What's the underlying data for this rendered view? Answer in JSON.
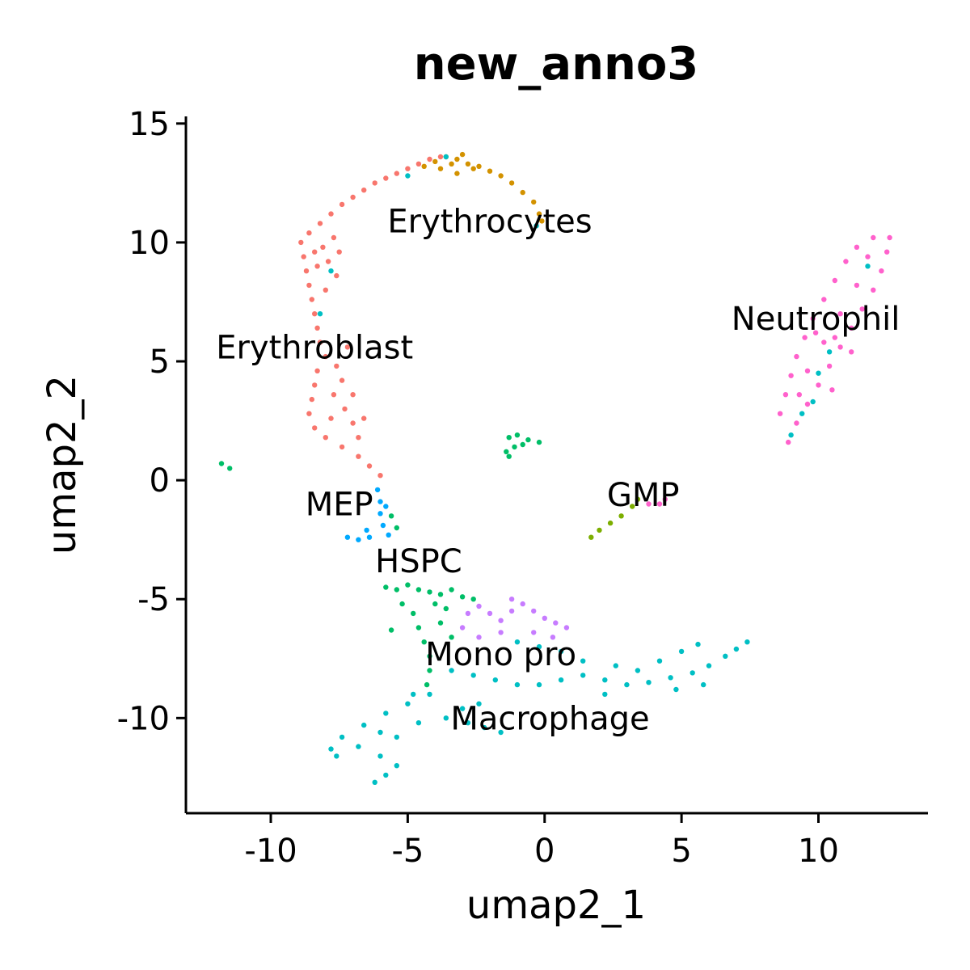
{
  "chart_data": {
    "type": "scatter",
    "title": "new_anno3",
    "xlabel": "umap2_1",
    "ylabel": "umap2_2",
    "xlim": [
      -13.1,
      14.0
    ],
    "ylim": [
      -14.0,
      15.3
    ],
    "xticks": [
      {
        "value": -10,
        "label": "-10"
      },
      {
        "value": -5,
        "label": "-5"
      },
      {
        "value": 0,
        "label": "0"
      },
      {
        "value": 5,
        "label": "5"
      },
      {
        "value": 10,
        "label": "10"
      }
    ],
    "yticks": [
      {
        "value": 15,
        "label": "15"
      },
      {
        "value": 10,
        "label": "10"
      },
      {
        "value": 5,
        "label": "5"
      },
      {
        "value": 0,
        "label": "0"
      },
      {
        "value": -5,
        "label": "-5"
      },
      {
        "value": -10,
        "label": "-10"
      }
    ],
    "grid": false,
    "legend": "none",
    "labels": [
      {
        "text": "Erythrocytes",
        "x": -2.0,
        "y": 10.9
      },
      {
        "text": "Neutrophil",
        "x": 9.9,
        "y": 6.8
      },
      {
        "text": "Erythroblast",
        "x": -8.4,
        "y": 5.6
      },
      {
        "text": "MEP",
        "x": -7.5,
        "y": -1.0
      },
      {
        "text": "GMP",
        "x": 3.6,
        "y": -0.6
      },
      {
        "text": "HSPC",
        "x": -4.6,
        "y": -3.4
      },
      {
        "text": "Mono pro",
        "x": -1.6,
        "y": -7.3
      },
      {
        "text": "Macrophage",
        "x": 0.2,
        "y": -10.0
      }
    ],
    "series": [
      {
        "name": "Erythroblast",
        "color": "#F8766D",
        "points": [
          [
            -8.6,
            10.4
          ],
          [
            -8.2,
            10.8
          ],
          [
            -7.8,
            11.2
          ],
          [
            -7.4,
            11.6
          ],
          [
            -7.0,
            11.9
          ],
          [
            -6.6,
            12.2
          ],
          [
            -6.2,
            12.5
          ],
          [
            -5.8,
            12.7
          ],
          [
            -5.4,
            12.9
          ],
          [
            -5.0,
            13.1
          ],
          [
            -4.6,
            13.3
          ],
          [
            -4.2,
            13.5
          ],
          [
            -3.8,
            13.6
          ],
          [
            -8.9,
            10.0
          ],
          [
            -8.8,
            9.4
          ],
          [
            -8.7,
            8.8
          ],
          [
            -8.6,
            8.2
          ],
          [
            -8.5,
            7.6
          ],
          [
            -8.4,
            7.0
          ],
          [
            -8.3,
            6.4
          ],
          [
            -8.2,
            5.8
          ],
          [
            -8.0,
            5.2
          ],
          [
            -8.1,
            9.8
          ],
          [
            -7.9,
            9.2
          ],
          [
            -7.6,
            8.6
          ],
          [
            -7.7,
            10.2
          ],
          [
            -8.3,
            9.0
          ],
          [
            -8.0,
            8.0
          ],
          [
            -8.4,
            9.6
          ],
          [
            -7.5,
            9.6
          ],
          [
            -8.3,
            4.6
          ],
          [
            -8.4,
            4.0
          ],
          [
            -8.5,
            3.4
          ],
          [
            -8.6,
            2.8
          ],
          [
            -8.4,
            2.2
          ],
          [
            -8.0,
            1.8
          ],
          [
            -7.4,
            1.4
          ],
          [
            -6.8,
            1.0
          ],
          [
            -6.4,
            0.6
          ],
          [
            -6.0,
            0.2
          ],
          [
            -7.7,
            3.6
          ],
          [
            -7.3,
            3.0
          ],
          [
            -7.0,
            2.4
          ],
          [
            -7.8,
            2.6
          ],
          [
            -7.4,
            4.2
          ],
          [
            -7.0,
            3.6
          ],
          [
            -6.8,
            1.8
          ],
          [
            -7.6,
            4.8
          ],
          [
            -7.2,
            5.6
          ],
          [
            -6.6,
            2.6
          ]
        ]
      },
      {
        "name": "Erythrocytes",
        "color": "#D39200",
        "points": [
          [
            -4.4,
            13.2
          ],
          [
            -4.0,
            13.4
          ],
          [
            -3.6,
            13.6
          ],
          [
            -3.2,
            13.5
          ],
          [
            -2.8,
            13.3
          ],
          [
            -2.4,
            13.2
          ],
          [
            -2.0,
            13.0
          ],
          [
            -1.6,
            12.8
          ],
          [
            -1.2,
            12.5
          ],
          [
            -0.8,
            12.1
          ],
          [
            -0.4,
            11.7
          ],
          [
            -0.2,
            11.2
          ],
          [
            -0.1,
            10.9
          ],
          [
            -3.8,
            13.1
          ],
          [
            -3.4,
            13.3
          ],
          [
            -3.0,
            13.7
          ],
          [
            -2.6,
            13.1
          ],
          [
            -3.2,
            12.9
          ]
        ]
      },
      {
        "name": "MEP",
        "color": "#00A9FF",
        "points": [
          [
            -6.1,
            -0.4
          ],
          [
            -6.0,
            -0.9
          ],
          [
            -6.0,
            -1.4
          ],
          [
            -5.9,
            -1.9
          ],
          [
            -5.7,
            -2.3
          ],
          [
            -6.4,
            -2.4
          ],
          [
            -6.8,
            -2.5
          ],
          [
            -7.2,
            -2.4
          ],
          [
            -6.5,
            -2.1
          ],
          [
            -5.8,
            -1.1
          ]
        ]
      },
      {
        "name": "HSPC",
        "color": "#00BE67",
        "points": [
          [
            -5.6,
            -1.5
          ],
          [
            -5.4,
            -2.0
          ],
          [
            -5.8,
            -4.5
          ],
          [
            -5.4,
            -4.6
          ],
          [
            -5.0,
            -4.4
          ],
          [
            -4.6,
            -4.6
          ],
          [
            -4.2,
            -4.7
          ],
          [
            -3.8,
            -4.8
          ],
          [
            -3.4,
            -4.6
          ],
          [
            -3.0,
            -4.9
          ],
          [
            -2.6,
            -5.0
          ],
          [
            -5.2,
            -5.2
          ],
          [
            -4.8,
            -5.6
          ],
          [
            -4.6,
            -6.2
          ],
          [
            -4.4,
            -6.8
          ],
          [
            -4.2,
            -7.4
          ],
          [
            -4.2,
            -8.0
          ],
          [
            -4.3,
            -8.6
          ],
          [
            -3.8,
            -6.0
          ],
          [
            -3.6,
            -5.4
          ],
          [
            -4.0,
            -5.2
          ],
          [
            -3.4,
            -6.6
          ],
          [
            -5.6,
            -6.3
          ],
          [
            -1.3,
            1.8
          ],
          [
            -1.0,
            1.9
          ],
          [
            -0.6,
            1.7
          ],
          [
            -0.2,
            1.6
          ],
          [
            -1.1,
            1.4
          ],
          [
            -0.8,
            1.5
          ],
          [
            -1.4,
            1.2
          ],
          [
            -1.3,
            1.0
          ],
          [
            -11.8,
            0.7
          ],
          [
            -11.5,
            0.5
          ]
        ]
      },
      {
        "name": "GMP",
        "color": "#7CAE00",
        "points": [
          [
            1.7,
            -2.4
          ],
          [
            2.0,
            -2.1
          ],
          [
            2.4,
            -1.8
          ],
          [
            2.8,
            -1.5
          ],
          [
            3.2,
            -1.1
          ],
          [
            3.4,
            -0.8
          ]
        ]
      },
      {
        "name": "Mono pro",
        "color": "#C77CFF",
        "points": [
          [
            -3.0,
            -6.2
          ],
          [
            -2.8,
            -5.6
          ],
          [
            -2.4,
            -5.3
          ],
          [
            -2.0,
            -5.6
          ],
          [
            -1.6,
            -5.9
          ],
          [
            -1.2,
            -5.5
          ],
          [
            -0.8,
            -5.2
          ],
          [
            -0.4,
            -5.5
          ],
          [
            0.0,
            -5.8
          ],
          [
            0.4,
            -6.0
          ],
          [
            0.8,
            -6.2
          ],
          [
            -1.6,
            -6.4
          ],
          [
            -2.4,
            -6.6
          ],
          [
            -0.4,
            -6.4
          ],
          [
            0.3,
            -6.6
          ],
          [
            -1.2,
            -5.0
          ]
        ]
      },
      {
        "name": "Macrophage",
        "color": "#00BFC4",
        "points": [
          [
            -1.0,
            -6.8
          ],
          [
            -0.2,
            -7.0
          ],
          [
            0.6,
            -7.2
          ],
          [
            1.4,
            -7.6
          ],
          [
            -3.4,
            -8.0
          ],
          [
            -2.6,
            -8.2
          ],
          [
            -1.8,
            -8.4
          ],
          [
            -1.0,
            -8.6
          ],
          [
            -0.2,
            -8.6
          ],
          [
            0.6,
            -8.4
          ],
          [
            1.4,
            -8.2
          ],
          [
            2.2,
            -8.4
          ],
          [
            3.0,
            -8.6
          ],
          [
            3.8,
            -8.5
          ],
          [
            4.6,
            -8.3
          ],
          [
            5.4,
            -8.1
          ],
          [
            6.0,
            -7.8
          ],
          [
            6.6,
            -7.4
          ],
          [
            7.0,
            -7.1
          ],
          [
            7.4,
            -6.8
          ],
          [
            3.4,
            -8.0
          ],
          [
            4.2,
            -7.6
          ],
          [
            5.0,
            -7.2
          ],
          [
            5.6,
            -6.9
          ],
          [
            4.8,
            -8.8
          ],
          [
            5.8,
            -8.6
          ],
          [
            2.6,
            -7.8
          ],
          [
            2.2,
            -9.0
          ],
          [
            -4.2,
            -9.0
          ],
          [
            -5.0,
            -9.4
          ],
          [
            -5.8,
            -9.8
          ],
          [
            -6.6,
            -10.3
          ],
          [
            -7.4,
            -10.8
          ],
          [
            -7.8,
            -11.3
          ],
          [
            -7.6,
            -11.6
          ],
          [
            -6.8,
            -11.2
          ],
          [
            -6.0,
            -11.6
          ],
          [
            -5.4,
            -12.0
          ],
          [
            -5.8,
            -12.4
          ],
          [
            -6.2,
            -12.7
          ],
          [
            -3.6,
            -10.0
          ],
          [
            -2.8,
            -10.2
          ],
          [
            -2.2,
            -10.4
          ],
          [
            -1.6,
            -10.6
          ],
          [
            -3.0,
            -9.6
          ],
          [
            -2.4,
            -9.4
          ],
          [
            -4.6,
            -10.2
          ],
          [
            -5.4,
            -10.8
          ],
          [
            -6.0,
            -10.6
          ],
          [
            -4.8,
            -9.0
          ],
          [
            -3.6,
            13.6
          ],
          [
            11.8,
            9.0
          ],
          [
            10.4,
            5.4
          ],
          [
            10.0,
            4.5
          ],
          [
            9.8,
            3.3
          ],
          [
            9.4,
            2.8
          ],
          [
            9.0,
            1.9
          ],
          [
            -7.8,
            8.8
          ],
          [
            -8.2,
            7.0
          ],
          [
            -0.3,
            10.7
          ],
          [
            -5.0,
            12.8
          ]
        ]
      },
      {
        "name": "Neutrophil",
        "color": "#FF61CC",
        "points": [
          [
            8.9,
            1.6
          ],
          [
            9.2,
            2.4
          ],
          [
            9.6,
            3.2
          ],
          [
            10.0,
            4.0
          ],
          [
            10.4,
            4.8
          ],
          [
            10.8,
            5.6
          ],
          [
            11.2,
            6.4
          ],
          [
            11.6,
            7.2
          ],
          [
            12.0,
            8.0
          ],
          [
            12.3,
            8.8
          ],
          [
            12.5,
            9.6
          ],
          [
            12.6,
            10.2
          ],
          [
            8.6,
            2.8
          ],
          [
            8.8,
            3.6
          ],
          [
            9.0,
            4.4
          ],
          [
            9.2,
            5.2
          ],
          [
            9.5,
            6.0
          ],
          [
            9.8,
            6.8
          ],
          [
            10.2,
            7.6
          ],
          [
            10.6,
            8.4
          ],
          [
            11.0,
            9.2
          ],
          [
            11.4,
            9.8
          ],
          [
            12.0,
            10.2
          ],
          [
            9.6,
            4.6
          ],
          [
            10.2,
            5.8
          ],
          [
            10.8,
            7.0
          ],
          [
            11.4,
            8.2
          ],
          [
            9.3,
            3.6
          ],
          [
            10.6,
            6.0
          ],
          [
            11.8,
            9.4
          ],
          [
            9.9,
            6.2
          ],
          [
            10.5,
            3.8
          ],
          [
            11.2,
            5.4
          ],
          [
            3.8,
            -1.0
          ],
          [
            4.2,
            -1.0
          ],
          [
            4.4,
            -0.8
          ]
        ]
      }
    ]
  }
}
